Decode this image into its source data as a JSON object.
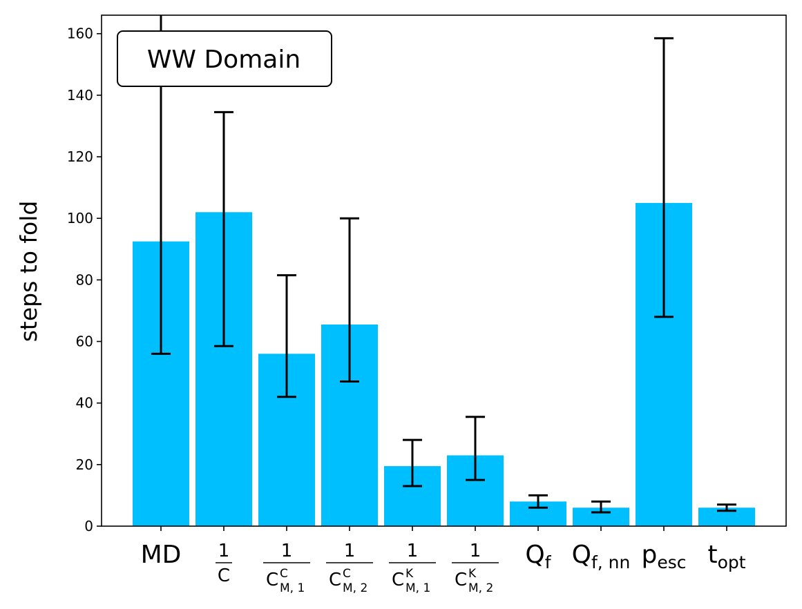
{
  "chart_data": {
    "type": "bar",
    "title": "",
    "xlabel": "",
    "ylabel": "steps to fold",
    "annotation": "WW Domain",
    "ylim": [
      0,
      166
    ],
    "yticks": [
      0,
      20,
      40,
      60,
      80,
      100,
      120,
      140,
      160
    ],
    "grid": false,
    "bar_color": "#00BFFF",
    "errorbar_color": "#000000",
    "categories": [
      {
        "kind": "text",
        "text": "MD"
      },
      {
        "kind": "frac",
        "numer": "1",
        "denom": "C",
        "sub": "",
        "sup": ""
      },
      {
        "kind": "frac",
        "numer": "1",
        "denom": "C",
        "sub": "M, 1",
        "sup": "C"
      },
      {
        "kind": "frac",
        "numer": "1",
        "denom": "C",
        "sub": "M, 2",
        "sup": "C"
      },
      {
        "kind": "frac",
        "numer": "1",
        "denom": "C",
        "sub": "M, 1",
        "sup": "K"
      },
      {
        "kind": "frac",
        "numer": "1",
        "denom": "C",
        "sub": "M, 2",
        "sup": "K"
      },
      {
        "kind": "sub",
        "base": "Q",
        "sub": "f"
      },
      {
        "kind": "sub",
        "base": "Q",
        "sub": "f, nn"
      },
      {
        "kind": "sub",
        "base": "p",
        "sub": "esc"
      },
      {
        "kind": "sub",
        "base": "t",
        "sub": "opt"
      }
    ],
    "values": [
      92.5,
      102,
      56,
      65.5,
      19.5,
      23,
      8,
      6,
      105,
      6
    ],
    "err_low": [
      56,
      58.5,
      42,
      47,
      13,
      15,
      6,
      4.5,
      68,
      5
    ],
    "err_high": [
      167,
      134.5,
      81.5,
      100,
      28,
      35.5,
      10,
      8,
      158.5,
      7
    ]
  }
}
